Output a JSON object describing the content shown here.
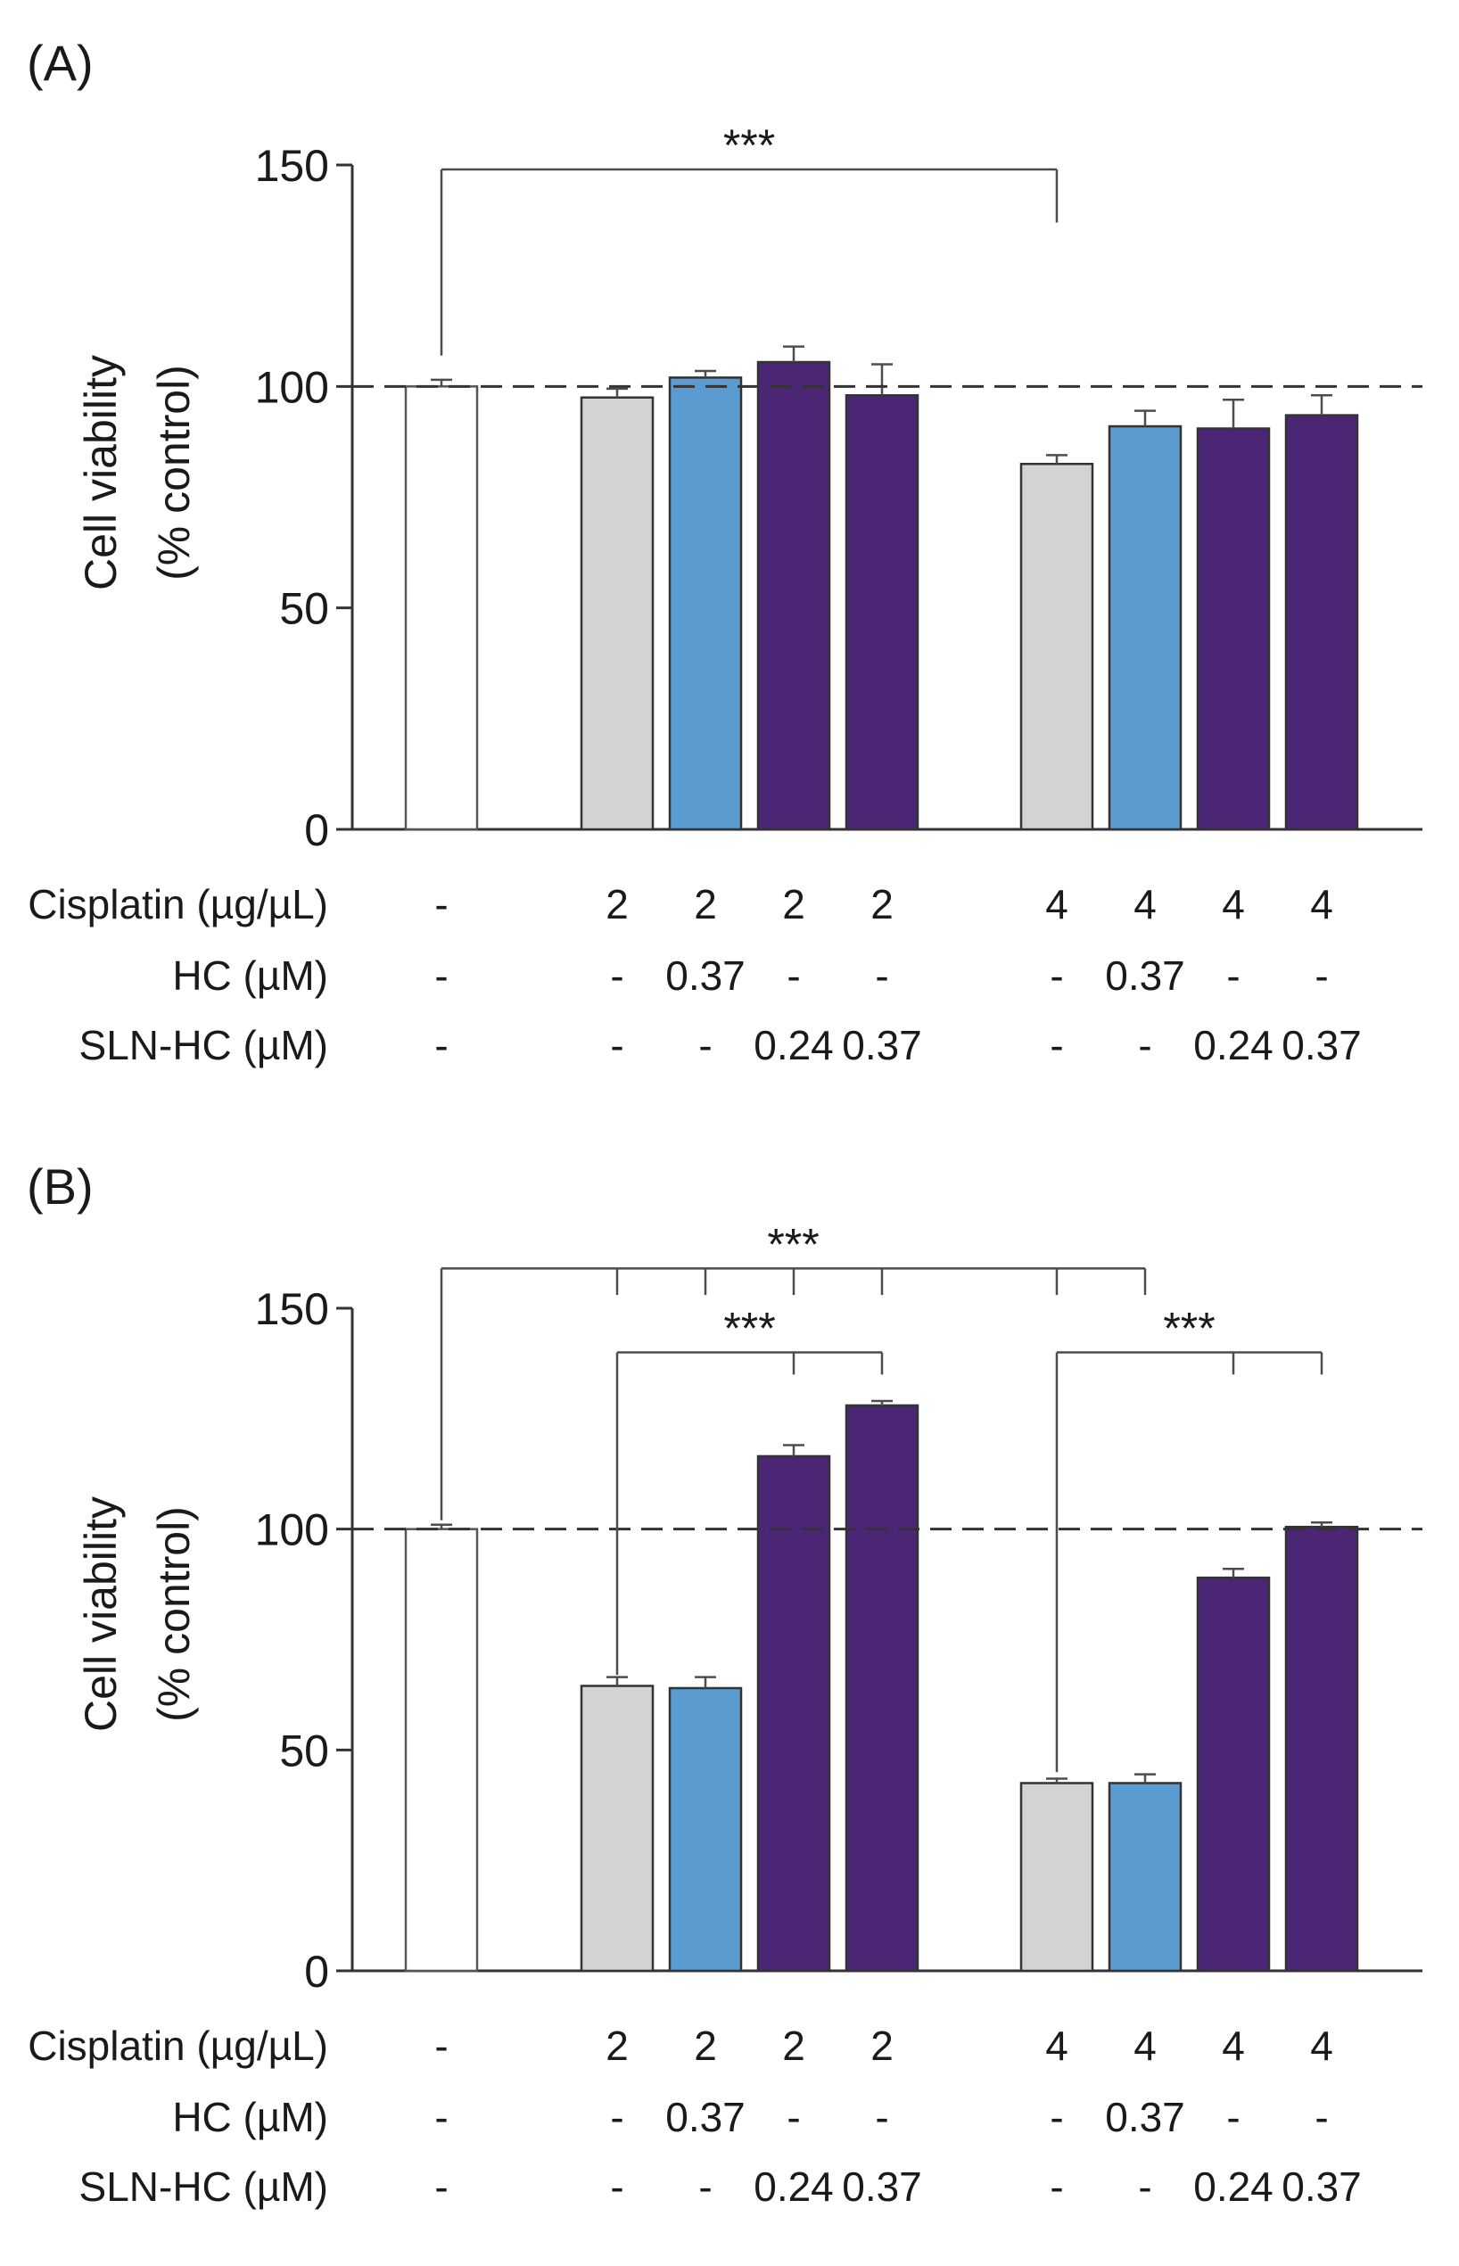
{
  "chart_data": [
    {
      "type": "bar",
      "panel_label": "(A)",
      "ylabel_line1": "Cell viability",
      "ylabel_line2": "(% control)",
      "ylim": [
        0,
        150
      ],
      "yticks": [
        0,
        50,
        100,
        150
      ],
      "reference_line": 100,
      "row_labels": [
        "Cisplatin (µg/µL)",
        "HC (µM)",
        "SLN-HC (µM)"
      ],
      "bars": [
        {
          "value": 100,
          "err": 1.5,
          "color": "#ffffff",
          "cisplatin": "-",
          "hc": "-",
          "sln_hc": "-"
        },
        {
          "value": 97.5,
          "err": 2.0,
          "color": "#d3d3d3",
          "cisplatin": "2",
          "hc": "-",
          "sln_hc": "-"
        },
        {
          "value": 102,
          "err": 1.5,
          "color": "#5a9bd0",
          "cisplatin": "2",
          "hc": "0.37",
          "sln_hc": "-"
        },
        {
          "value": 105.5,
          "err": 3.5,
          "color": "#4a2674",
          "cisplatin": "2",
          "hc": "-",
          "sln_hc": "0.24"
        },
        {
          "value": 98,
          "err": 7.0,
          "color": "#4a2674",
          "cisplatin": "2",
          "hc": "-",
          "sln_hc": "0.37"
        },
        {
          "value": 82.5,
          "err": 2.0,
          "color": "#d3d3d3",
          "cisplatin": "4",
          "hc": "-",
          "sln_hc": "-"
        },
        {
          "value": 91,
          "err": 3.5,
          "color": "#5a9bd0",
          "cisplatin": "4",
          "hc": "0.37",
          "sln_hc": "-"
        },
        {
          "value": 90.5,
          "err": 6.5,
          "color": "#4a2674",
          "cisplatin": "4",
          "hc": "-",
          "sln_hc": "0.24"
        },
        {
          "value": 93.5,
          "err": 4.5,
          "color": "#4a2674",
          "cisplatin": "4",
          "hc": "-",
          "sln_hc": "0.37"
        }
      ],
      "brackets": [
        {
          "label": "***",
          "top": 149,
          "from": 0,
          "to": [
            5
          ],
          "drops": [
            [
              0,
              107
            ],
            [
              5,
              137
            ]
          ]
        }
      ]
    },
    {
      "type": "bar",
      "panel_label": "(B)",
      "ylabel_line1": "Cell viability",
      "ylabel_line2": "(% control)",
      "ylim": [
        0,
        150
      ],
      "yticks": [
        0,
        50,
        100,
        150
      ],
      "reference_line": 100,
      "row_labels": [
        "Cisplatin (µg/µL)",
        "HC (µM)",
        "SLN-HC (µM)"
      ],
      "bars": [
        {
          "value": 100,
          "err": 1.0,
          "color": "#ffffff",
          "cisplatin": "-",
          "hc": "-",
          "sln_hc": "-"
        },
        {
          "value": 64.5,
          "err": 2.0,
          "color": "#d3d3d3",
          "cisplatin": "2",
          "hc": "-",
          "sln_hc": "-"
        },
        {
          "value": 64,
          "err": 2.5,
          "color": "#5a9bd0",
          "cisplatin": "2",
          "hc": "0.37",
          "sln_hc": "-"
        },
        {
          "value": 116.5,
          "err": 2.5,
          "color": "#4a2674",
          "cisplatin": "2",
          "hc": "-",
          "sln_hc": "0.24"
        },
        {
          "value": 128,
          "err": 1.0,
          "color": "#4a2674",
          "cisplatin": "2",
          "hc": "-",
          "sln_hc": "0.37"
        },
        {
          "value": 42.5,
          "err": 1.0,
          "color": "#d3d3d3",
          "cisplatin": "4",
          "hc": "-",
          "sln_hc": "-"
        },
        {
          "value": 42.5,
          "err": 2.0,
          "color": "#5a9bd0",
          "cisplatin": "4",
          "hc": "0.37",
          "sln_hc": "-"
        },
        {
          "value": 89,
          "err": 2.0,
          "color": "#4a2674",
          "cisplatin": "4",
          "hc": "-",
          "sln_hc": "0.24"
        },
        {
          "value": 100.5,
          "err": 1.0,
          "color": "#4a2674",
          "cisplatin": "4",
          "hc": "-",
          "sln_hc": "0.37"
        }
      ],
      "brackets": [
        {
          "label": "***",
          "top": 159,
          "from": 0,
          "drops": [
            [
              0,
              102
            ],
            [
              1,
              153
            ],
            [
              2,
              153
            ],
            [
              3,
              153
            ],
            [
              4,
              153
            ],
            [
              5,
              153
            ],
            [
              6,
              153
            ]
          ]
        },
        {
          "label": "***",
          "top": 140,
          "drops": [
            [
              1,
              67
            ],
            [
              3,
              135
            ],
            [
              4,
              135
            ]
          ]
        },
        {
          "label": "***",
          "top": 140,
          "drops": [
            [
              5,
              45
            ],
            [
              7,
              135
            ],
            [
              8,
              135
            ]
          ]
        }
      ]
    }
  ]
}
